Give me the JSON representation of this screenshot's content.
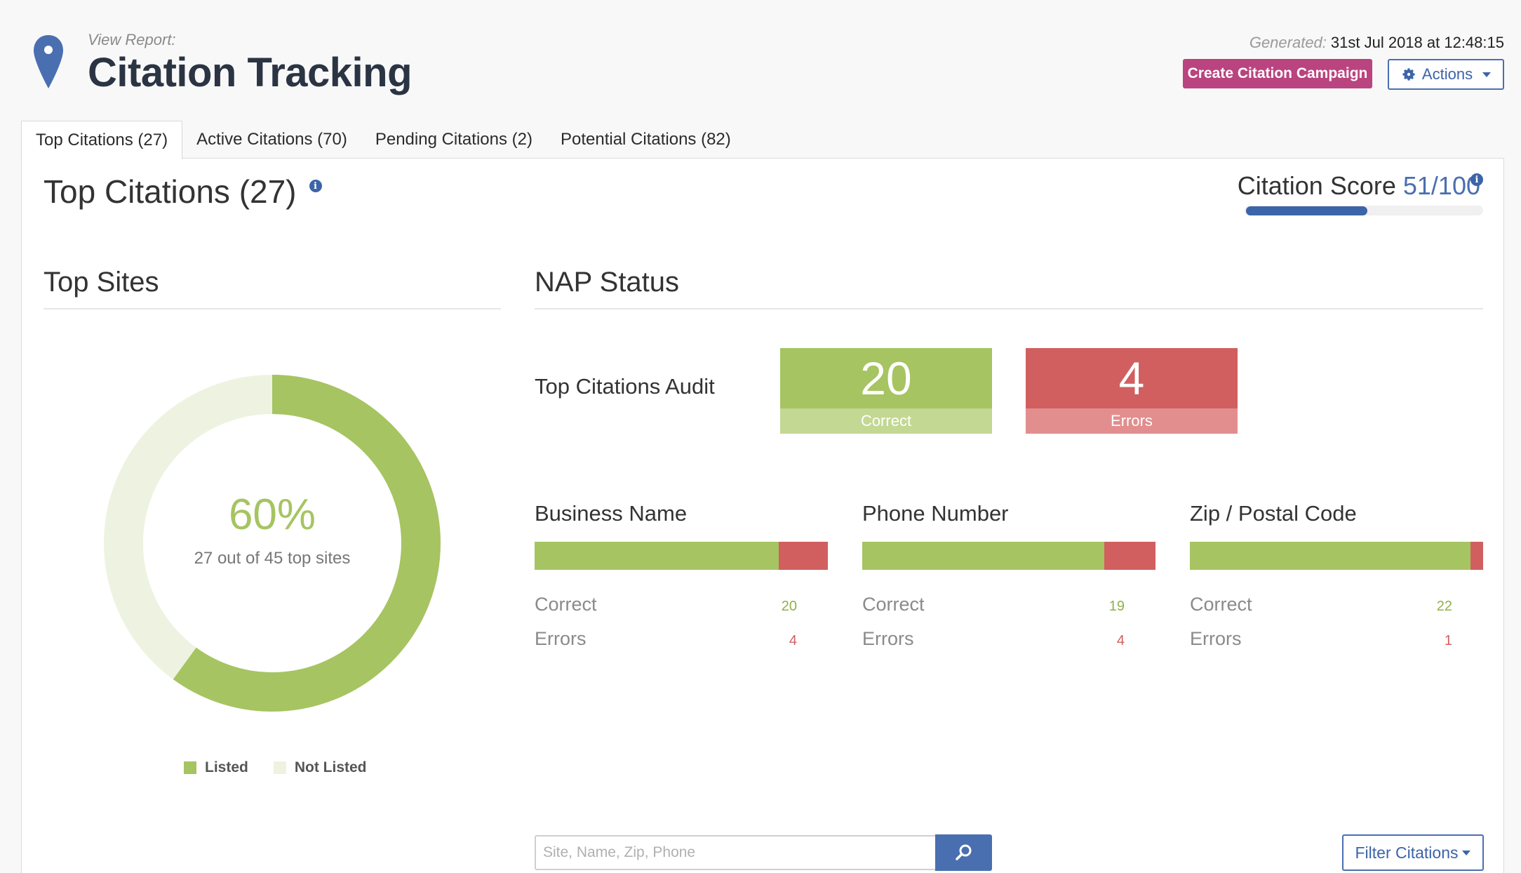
{
  "header": {
    "view_label": "View Report:",
    "title": "Citation Tracking",
    "generated_label": "Generated:",
    "generated_value": "31st Jul 2018 at 12:48:15",
    "create_button": "Create Citation Campaign",
    "actions_button": "Actions"
  },
  "tabs": [
    {
      "label": "Top Citations (27)",
      "active": true
    },
    {
      "label": "Active Citations (70)",
      "active": false
    },
    {
      "label": "Pending Citations (2)",
      "active": false
    },
    {
      "label": "Potential Citations (82)",
      "active": false
    }
  ],
  "panel": {
    "title": "Top Citations (27)",
    "score_label": "Citation Score",
    "score_value": "51/100",
    "score_fraction": 0.51
  },
  "top_sites": {
    "title": "Top Sites",
    "percent": "60%",
    "summary": "27 out of 45 top sites",
    "listed_fraction": 0.6,
    "legend": {
      "listed": "Listed",
      "not_listed": "Not Listed"
    },
    "colors": {
      "listed": "#a6c462",
      "not_listed": "#eef3e1"
    }
  },
  "nap": {
    "title": "NAP Status",
    "audit_label": "Top Citations Audit",
    "correct_count": "20",
    "correct_label": "Correct",
    "errors_count": "4",
    "errors_label": "Errors",
    "fields": [
      {
        "name": "Business Name",
        "correct_label": "Correct",
        "correct": "20",
        "errors_label": "Errors",
        "errors": "4"
      },
      {
        "name": "Phone Number",
        "correct_label": "Correct",
        "correct": "19",
        "errors_label": "Errors",
        "errors": "4"
      },
      {
        "name": "Zip / Postal Code",
        "correct_label": "Correct",
        "correct": "22",
        "errors_label": "Errors",
        "errors": "1"
      }
    ]
  },
  "search": {
    "placeholder": "Site, Name, Zip, Phone",
    "filter_button": "Filter Citations"
  },
  "icons": {
    "pin": "map-pin-icon",
    "gear": "gear-icon",
    "search": "search-icon",
    "info": "info-icon"
  },
  "colors": {
    "brand_blue": "#3c64a8",
    "campaign": "#b9447f",
    "correct": "#a6c462",
    "error": "#d15f5f"
  }
}
